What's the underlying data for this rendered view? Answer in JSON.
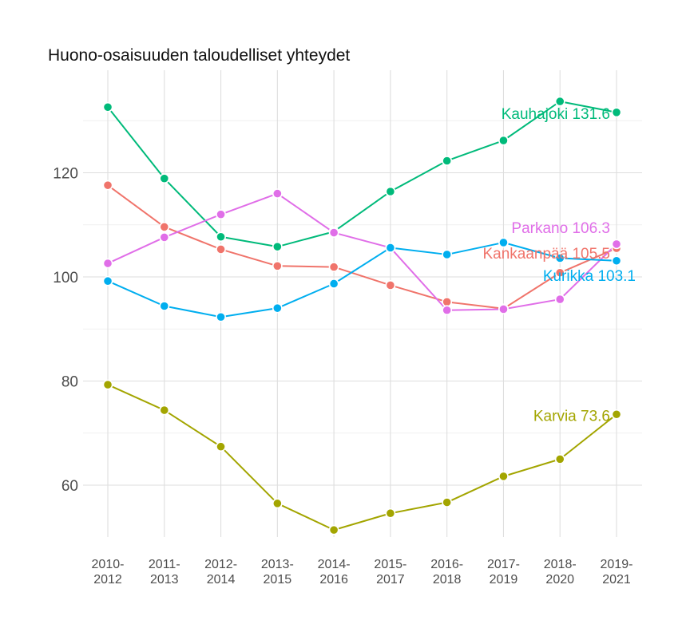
{
  "chart_data": {
    "type": "line",
    "title": "Huono-osaisuuden taloudelliset yhteydet",
    "xlabel": "",
    "ylabel": "",
    "categories": [
      "2010-2012",
      "2011-2013",
      "2012-2014",
      "2013-2015",
      "2014-2016",
      "2015-2017",
      "2016-2018",
      "2017-2019",
      "2018-2020",
      "2019-2021"
    ],
    "x_tick_lines": [
      [
        "2010-",
        "2012"
      ],
      [
        "2011-",
        "2013"
      ],
      [
        "2012-",
        "2014"
      ],
      [
        "2013-",
        "2015"
      ],
      [
        "2014-",
        "2016"
      ],
      [
        "2015-",
        "2017"
      ],
      [
        "2016-",
        "2018"
      ],
      [
        "2017-",
        "2019"
      ],
      [
        "2018-",
        "2020"
      ],
      [
        "2019-",
        "2021"
      ]
    ],
    "y_ticks": [
      60,
      80,
      100,
      120
    ],
    "ylim": [
      50,
      136
    ],
    "grid": true,
    "legend": "none",
    "series": [
      {
        "name": "Kauhajoki",
        "color": "#00ba7a",
        "values": [
          132.6,
          118.9,
          107.7,
          105.8,
          108.7,
          116.4,
          122.3,
          126.2,
          133.7,
          131.6
        ],
        "end_label": "Kauhajoki 131.6"
      },
      {
        "name": "Kankaanpää",
        "color": "#f0746b",
        "values": [
          117.6,
          109.6,
          105.3,
          102.1,
          101.9,
          98.4,
          95.2,
          93.9,
          100.8,
          105.5
        ],
        "end_label": "Kankaanpää 105.5"
      },
      {
        "name": "Parkano",
        "color": "#e06ee8",
        "values": [
          102.6,
          107.6,
          112.0,
          116.0,
          108.5,
          105.6,
          93.6,
          93.8,
          95.7,
          106.3
        ],
        "end_label": "Parkano 106.3"
      },
      {
        "name": "Kurikka",
        "color": "#00aeef",
        "values": [
          99.2,
          94.4,
          92.3,
          94.0,
          98.7,
          105.6,
          104.3,
          106.6,
          103.6,
          103.1
        ],
        "end_label": "Kurikka 103.1"
      },
      {
        "name": "Karvia",
        "color": "#a3a500",
        "values": [
          79.3,
          74.4,
          67.4,
          56.5,
          51.4,
          54.6,
          56.7,
          61.7,
          65.0,
          73.6
        ],
        "end_label": "Karvia 73.6"
      }
    ]
  }
}
